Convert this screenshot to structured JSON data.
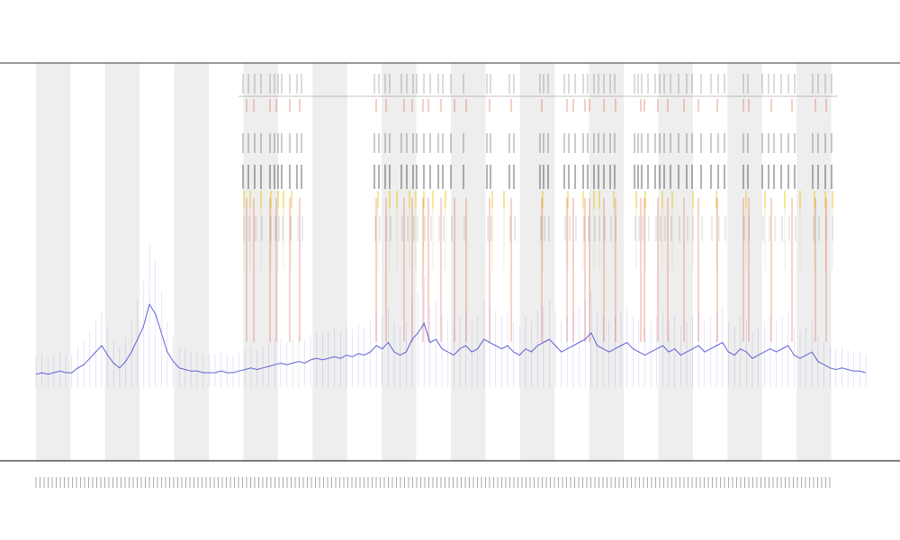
{
  "chart_data": {
    "type": "line",
    "title": "",
    "subtitle": "",
    "xlabel": "",
    "ylabel": "",
    "grid": true,
    "legend_position": "top-left",
    "colors": {
      "coverage": "#4848d0",
      "band": "#eeeeee",
      "red_feature": "#e04a2a",
      "yellow_feature": "#e6c600",
      "black_feature": "#111111",
      "axis": "#333333"
    },
    "series": [
      {
        "values": [
          8,
          9,
          8,
          9,
          10,
          9,
          9,
          12,
          14,
          18,
          22,
          26,
          20,
          15,
          12,
          16,
          22,
          30,
          38,
          52,
          46,
          34,
          22,
          16,
          12,
          11,
          10,
          10,
          9,
          9,
          9,
          10,
          9,
          9,
          10,
          11,
          12,
          11,
          12,
          13,
          14,
          15,
          14,
          15,
          16,
          15,
          17,
          18,
          17,
          18,
          19,
          18,
          20,
          19,
          21,
          20,
          22,
          26,
          24,
          28,
          22,
          20,
          22,
          30,
          34,
          40,
          28,
          30,
          24,
          22,
          20,
          24,
          26,
          22,
          24,
          30,
          28,
          26,
          24,
          26,
          22,
          20,
          24,
          22,
          26,
          28,
          30,
          26,
          22,
          24,
          26,
          28,
          30,
          34,
          26,
          24,
          22,
          24,
          26,
          28,
          24,
          22,
          20,
          22,
          24,
          26,
          22,
          24,
          20,
          22,
          24,
          26,
          22,
          24,
          26,
          28,
          22,
          20,
          24,
          22,
          18,
          20,
          22,
          24,
          22,
          24,
          26,
          20,
          18,
          20,
          22,
          16,
          14,
          12,
          11,
          12,
          11,
          10,
          10,
          9
        ]
      }
    ],
    "x_range": [
      0,
      139
    ],
    "y_range": [
      0,
      250
    ],
    "feature_tracks": [
      {
        "color": "black",
        "ticks": [
          270,
          276,
          283,
          290,
          300,
          305,
          309,
          313,
          322,
          330,
          335,
          416,
          421,
          428,
          433,
          446,
          452,
          459,
          463,
          471,
          478,
          487,
          492,
          501,
          515,
          541,
          545,
          566,
          571,
          600,
          604,
          609,
          627,
          632,
          639,
          648,
          653,
          660,
          665,
          671,
          678,
          683,
          705,
          709,
          713,
          720,
          728,
          733,
          738,
          745,
          754,
          763,
          769,
          779,
          790,
          798,
          805,
          826,
          831,
          847,
          854,
          860,
          868,
          876,
          883,
          903,
          909,
          917,
          924
        ]
      },
      {
        "color": "red",
        "ticks": [
          274,
          282,
          300,
          307,
          322,
          333,
          418,
          429,
          449,
          458,
          470,
          476,
          490,
          505,
          518,
          544,
          568,
          602,
          630,
          637,
          650,
          655,
          671,
          684,
          712,
          716,
          731,
          742,
          760,
          776,
          797,
          826,
          832,
          857,
          880,
          906,
          918
        ]
      },
      {
        "color": "yellow",
        "ticks": [
          271,
          278,
          290,
          301,
          309,
          315,
          324,
          420,
          433,
          441,
          455,
          462,
          471,
          481,
          495,
          547,
          560,
          603,
          631,
          648,
          660,
          666,
          682,
          707,
          717,
          736,
          747,
          770,
          796,
          829,
          850,
          872,
          889,
          905,
          917,
          925
        ]
      }
    ]
  }
}
